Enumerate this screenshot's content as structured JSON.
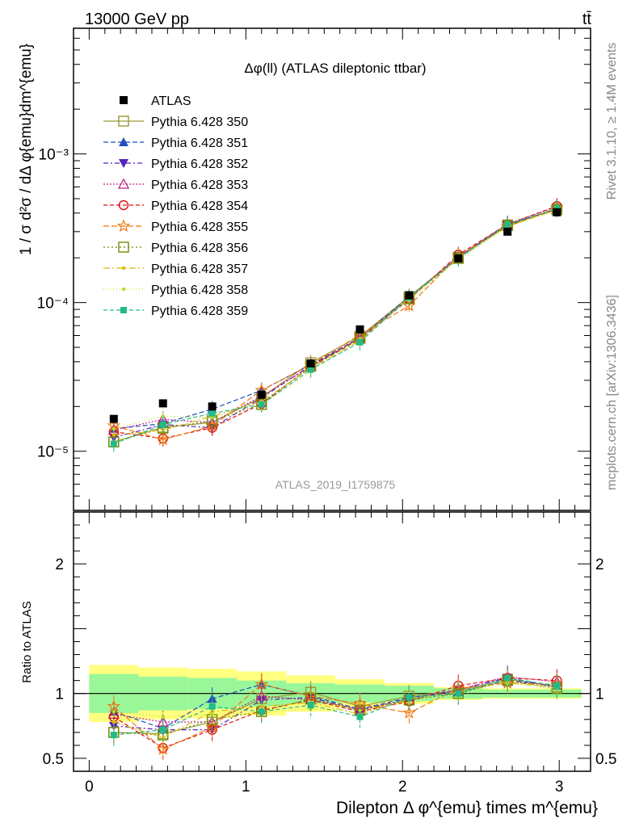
{
  "header": {
    "left": "13000 GeV pp",
    "right": "tt̄"
  },
  "side_texts": {
    "rivet": "Rivet 3.1.10, ≥ 1.4M events",
    "mcplots": "mcplots.cern.ch [arXiv:1306.3436]"
  },
  "chart_data": {
    "type": "line",
    "title": "Δφ(ll) (ATLAS dileptonic ttbar)",
    "watermark": "ATLAS_2019_I1759875",
    "xlabel": "Dilepton Δ φ^{emu} times m^{emu}",
    "ylabel": "1 / σ  d²σ / dΔ φ{emu}dm^{emu}",
    "ratio_ylabel": "Ratio to ATLAS",
    "x_ticks": [
      "0",
      "1",
      "2",
      "3"
    ],
    "y_ticks": [
      "10⁻⁵",
      "10⁻⁴",
      "10⁻³"
    ],
    "ratio_ticks": [
      "0.5",
      "1",
      "2"
    ],
    "xlim": [
      -0.1,
      3.2
    ],
    "ylim": [
      4e-06,
      0.007
    ],
    "yscale": "log",
    "ratio_ylim": [
      0.4,
      2.4
    ],
    "x": [
      0.157,
      0.471,
      0.785,
      1.1,
      1.414,
      1.728,
      2.042,
      2.356,
      2.67,
      2.985
    ],
    "bin_edges": [
      0,
      0.314,
      0.628,
      0.942,
      1.257,
      1.571,
      1.885,
      2.199,
      2.513,
      2.827,
      3.142
    ],
    "data": {
      "name": "ATLAS",
      "values": [
        1.65e-05,
        2.1e-05,
        2e-05,
        2.4e-05,
        3.9e-05,
        6.6e-05,
        0.000112,
        0.000198,
        0.0003,
        0.000405
      ],
      "band_inner": [
        0.15,
        0.13,
        0.12,
        0.1,
        0.08,
        0.07,
        0.06,
        0.04,
        0.03,
        0.03
      ],
      "band_outer": [
        0.22,
        0.2,
        0.19,
        0.17,
        0.14,
        0.11,
        0.08,
        0.05,
        0.04,
        0.04
      ]
    },
    "series": [
      {
        "name": "Pythia 6.428 350",
        "color": "#999933",
        "dash": "",
        "marker": "open-square",
        "ratio": [
          0.7,
          0.69,
          0.78,
          0.96,
          1.01,
          0.9,
          0.98,
          1.02,
          1.11,
          1.05
        ]
      },
      {
        "name": "Pythia 6.428 351",
        "color": "#1f4fbf",
        "dash": "6,3",
        "marker": "triangle-up",
        "ratio": [
          0.86,
          0.73,
          0.96,
          1.07,
          0.98,
          0.88,
          0.97,
          1.01,
          1.1,
          1.06
        ]
      },
      {
        "name": "Pythia 6.428 352",
        "color": "#5522bb",
        "dash": "6,3,2,3",
        "marker": "triangle-down",
        "ratio": [
          0.75,
          0.72,
          0.72,
          0.95,
          0.97,
          0.87,
          0.96,
          1.03,
          1.12,
          1.05
        ]
      },
      {
        "name": "Pythia 6.428 353",
        "color": "#bb2288",
        "dash": "2,2",
        "marker": "open-triangle",
        "ratio": [
          0.84,
          0.78,
          0.78,
          0.98,
          0.95,
          0.88,
          0.95,
          1.03,
          1.13,
          1.09
        ]
      },
      {
        "name": "Pythia 6.428 354",
        "color": "#dd1111",
        "dash": "5,3",
        "marker": "open-circle",
        "ratio": [
          0.82,
          0.58,
          0.72,
          0.87,
          0.95,
          0.86,
          0.94,
          1.06,
          1.12,
          1.1
        ]
      },
      {
        "name": "Pythia 6.428 355",
        "color": "#ee7711",
        "dash": "7,3",
        "marker": "open-star",
        "ratio": [
          0.9,
          0.57,
          0.74,
          1.07,
          0.98,
          0.92,
          0.85,
          1.04,
          1.08,
          1.07
        ]
      },
      {
        "name": "Pythia 6.428 356",
        "color": "#778800",
        "dash": "2,3",
        "marker": "open-square",
        "ratio": [
          0.7,
          0.68,
          0.8,
          0.86,
          0.96,
          0.87,
          0.95,
          1.0,
          1.1,
          1.04
        ]
      },
      {
        "name": "Pythia 6.428 357",
        "color": "#ddbb11",
        "dash": "8,3,2,3",
        "marker": "dot",
        "ratio": [
          0.78,
          0.66,
          0.86,
          0.9,
          0.93,
          0.84,
          0.96,
          1.01,
          1.09,
          1.04
        ]
      },
      {
        "name": "Pythia 6.428 358",
        "color": "#bbdd22",
        "dash": "1,3",
        "marker": "dot",
        "ratio": [
          0.86,
          0.82,
          0.84,
          0.85,
          0.88,
          0.87,
          0.93,
          0.98,
          1.08,
          1.03
        ]
      },
      {
        "name": "Pythia 6.428 359",
        "color": "#22bb88",
        "dash": "5,3",
        "marker": "filled-square",
        "ratio": [
          0.68,
          0.72,
          0.9,
          0.86,
          0.91,
          0.82,
          0.97,
          1.0,
          1.12,
          1.06
        ]
      }
    ]
  }
}
